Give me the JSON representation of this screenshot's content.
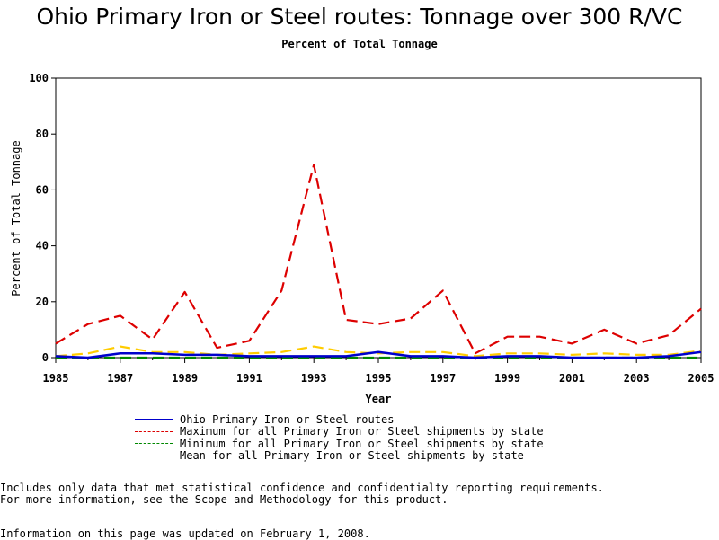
{
  "chart_data": {
    "type": "line",
    "title": "Ohio Primary Iron or Steel routes: Tonnage over 300 R/VC",
    "subtitle": "Percent of Total Tonnage",
    "xlabel": "Year",
    "ylabel": "Percent of Total Tonnage",
    "xlim": [
      1985,
      2005
    ],
    "ylim": [
      0,
      100
    ],
    "x_ticks": [
      "1985",
      "1987",
      "1989",
      "1991",
      "1993",
      "1995",
      "1997",
      "1999",
      "2001",
      "2003",
      "2005"
    ],
    "y_ticks": [
      "0",
      "20",
      "40",
      "60",
      "80",
      "100"
    ],
    "grid": false,
    "legend_position": "bottom",
    "x": [
      1985,
      1986,
      1987,
      1988,
      1989,
      1990,
      1991,
      1992,
      1993,
      1994,
      1995,
      1996,
      1997,
      1998,
      1999,
      2000,
      2001,
      2002,
      2003,
      2004,
      2005
    ],
    "series": [
      {
        "name": "Ohio Primary Iron or Steel routes",
        "color": "#0000cc",
        "dash": "solid",
        "values": [
          0.5,
          0.0,
          1.5,
          1.5,
          1.0,
          1.0,
          0.5,
          0.5,
          0.5,
          0.5,
          2.0,
          0.5,
          0.5,
          0.0,
          0.5,
          0.5,
          0.0,
          0.0,
          0.0,
          0.5,
          2.0
        ]
      },
      {
        "name": "Maximum for all Primary Iron or Steel shipments by state",
        "color": "#dd0000",
        "dash": "dashed",
        "values": [
          5.0,
          12.0,
          15.0,
          6.5,
          23.5,
          3.5,
          6.0,
          24.0,
          69.0,
          13.5,
          12.0,
          14.0,
          24.0,
          1.5,
          7.5,
          7.5,
          5.0,
          10.0,
          5.0,
          8.0,
          17.5
        ]
      },
      {
        "name": "Minimum for all Primary Iron or Steel shipments by state",
        "color": "#008800",
        "dash": "dashed",
        "values": [
          0.0,
          0.0,
          0.0,
          0.0,
          0.0,
          0.0,
          0.0,
          0.0,
          0.0,
          0.0,
          0.0,
          0.0,
          0.0,
          0.0,
          0.0,
          0.0,
          0.0,
          0.0,
          0.0,
          0.0,
          0.0
        ]
      },
      {
        "name": "Mean for all Primary Iron or Steel shipments by state",
        "color": "#ffcc00",
        "dash": "dashed",
        "values": [
          0.5,
          1.5,
          4.0,
          2.0,
          2.0,
          1.0,
          1.5,
          2.0,
          4.0,
          2.0,
          1.5,
          2.0,
          2.0,
          0.5,
          1.5,
          1.5,
          1.0,
          1.5,
          1.0,
          1.0,
          2.5
        ]
      }
    ]
  },
  "notes": {
    "line1": "Includes only data that met statistical confidence and confidentialty reporting requirements.",
    "line2": "For more information, see the Scope and Methodology for this product.",
    "updated": "Information on this page was updated on February 1, 2008."
  }
}
